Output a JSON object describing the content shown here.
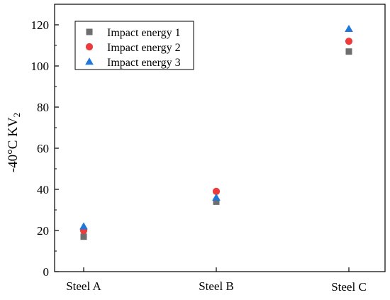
{
  "chart_data": {
    "type": "scatter",
    "title": "",
    "xlabel": "",
    "ylabel": "-40°C KV",
    "ylabel_subscript": "2",
    "categories": [
      "Steel A",
      "Steel B",
      "Steel C"
    ],
    "ylim": [
      0,
      130
    ],
    "yticks": [
      0,
      20,
      40,
      60,
      80,
      100,
      120
    ],
    "grid": false,
    "legend_position": "top-left",
    "series": [
      {
        "name": "Impact energy 1",
        "marker": "square",
        "color": "#6e6e6e",
        "values": [
          17,
          34,
          107
        ]
      },
      {
        "name": "Impact energy 2",
        "marker": "circle",
        "color": "#ee3a3a",
        "values": [
          20,
          39,
          112
        ]
      },
      {
        "name": "Impact energy 3",
        "marker": "triangle",
        "color": "#1f77d9",
        "values": [
          22,
          36,
          118
        ]
      }
    ]
  }
}
